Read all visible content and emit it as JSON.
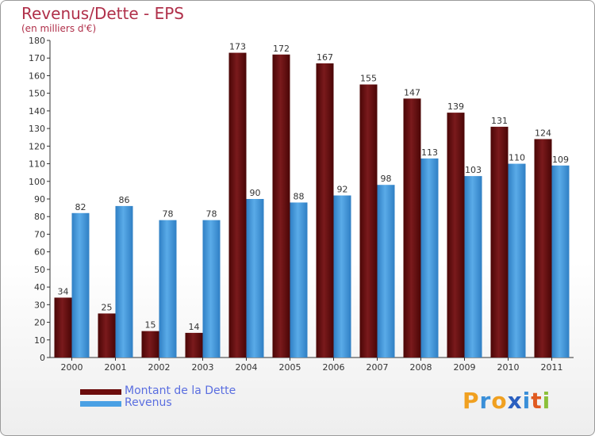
{
  "title": "Revenus/Dette - EPS",
  "subtitle": "(en milliers d'€)",
  "colors": {
    "dette": "#7a1a1c",
    "dette_dark": "#4a0606",
    "revenus": "#5aabe8",
    "revenus_dark": "#2f7fc4",
    "title": "#b0304a",
    "legend_text": "#5a6ee0"
  },
  "legend": [
    {
      "label": "Montant de la Dette",
      "color": "#6b0c0c"
    },
    {
      "label": "Revenus",
      "color": "#4aa0e4"
    }
  ],
  "logo": {
    "letters": [
      "P",
      "r",
      "o",
      "x",
      "i",
      "t",
      "i"
    ],
    "colors": [
      "#f0a020",
      "#3a8fd8",
      "#f0a020",
      "#2a5fc0",
      "#3a8fd8",
      "#e05a20",
      "#8cc03a"
    ]
  },
  "chart_data": {
    "type": "bar",
    "categories": [
      "2000",
      "2001",
      "2002",
      "2003",
      "2004",
      "2005",
      "2006",
      "2007",
      "2008",
      "2009",
      "2010",
      "2011"
    ],
    "series": [
      {
        "name": "Montant de la Dette",
        "values": [
          34,
          25,
          15,
          14,
          173,
          172,
          167,
          155,
          147,
          139,
          131,
          124
        ]
      },
      {
        "name": "Revenus",
        "values": [
          82,
          86,
          78,
          78,
          90,
          88,
          92,
          98,
          113,
          103,
          110,
          109
        ]
      }
    ],
    "ylim": [
      0,
      180
    ],
    "ytick_step": 10,
    "grid": false,
    "legend": "bottom-left"
  }
}
